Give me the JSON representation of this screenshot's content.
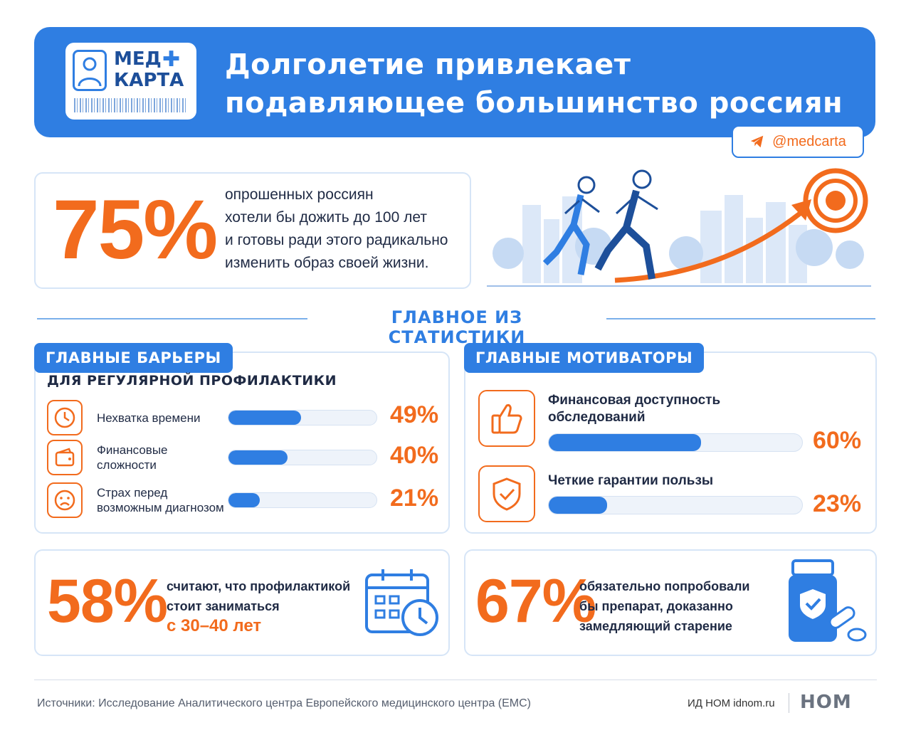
{
  "header": {
    "logo_line1": "МЕД",
    "logo_line2": "КАРТА",
    "title_line1": "Долголетие привлекает",
    "title_line2": "подавляющее большинство россиян"
  },
  "telegram": {
    "handle": "@medcarta",
    "icon": "telegram-icon"
  },
  "hero": {
    "value": "75%",
    "lines": [
      "опрошенных россиян",
      "хотели бы дожить до 100 лет",
      "и готовы ради этого радикально",
      "изменить образ своей жизни."
    ]
  },
  "section_title": "ГЛАВНОЕ ИЗ СТАТИСТИКИ",
  "barriers": {
    "tag": "ГЛАВНЫЕ БАРЬЕРЫ",
    "subtitle": "ДЛЯ РЕГУЛЯРНОЙ ПРОФИЛАКТИКИ",
    "items": [
      {
        "icon": "clock-icon",
        "line1": "Нехватка времени",
        "line2": "",
        "percent": 49,
        "label": "49%"
      },
      {
        "icon": "wallet-icon",
        "line1": "Финансовые",
        "line2": "сложности",
        "percent": 40,
        "label": "40%"
      },
      {
        "icon": "worried-face-icon",
        "line1": "Страх перед",
        "line2": "возможным диагнозом",
        "percent": 21,
        "label": "21%"
      }
    ]
  },
  "motivators": {
    "tag": "ГЛАВНЫЕ МОТИВАТОРЫ",
    "items": [
      {
        "icon": "thumbs-up-icon",
        "line1": "Финансовая доступность",
        "line2": "обследований",
        "percent": 60,
        "label": "60%"
      },
      {
        "icon": "shield-check-icon",
        "line1": "Четкие гарантии пользы",
        "line2": "",
        "percent": 23,
        "label": "23%"
      }
    ]
  },
  "stat_58": {
    "value": "58%",
    "line1": "считают, что профилактикой",
    "line2": "стоит заниматься",
    "line3": "с 30–40 лет",
    "icon": "calendar-clock-icon"
  },
  "stat_67": {
    "value": "67%",
    "line1": "обязательно попробовали",
    "line2": "бы препарат, доказанно",
    "line3": "замедляющий старение",
    "icon": "pill-bottle-icon"
  },
  "footer": {
    "sources": "Источники: Исследование Аналитического центра Европейского медицинского центра (EMC)",
    "publisher": "ИД НОМ idnom.ru",
    "logo": "НОМ"
  },
  "colors": {
    "primary": "#2f7ee2",
    "accent": "#f26b1d",
    "text": "#1f2a44"
  }
}
